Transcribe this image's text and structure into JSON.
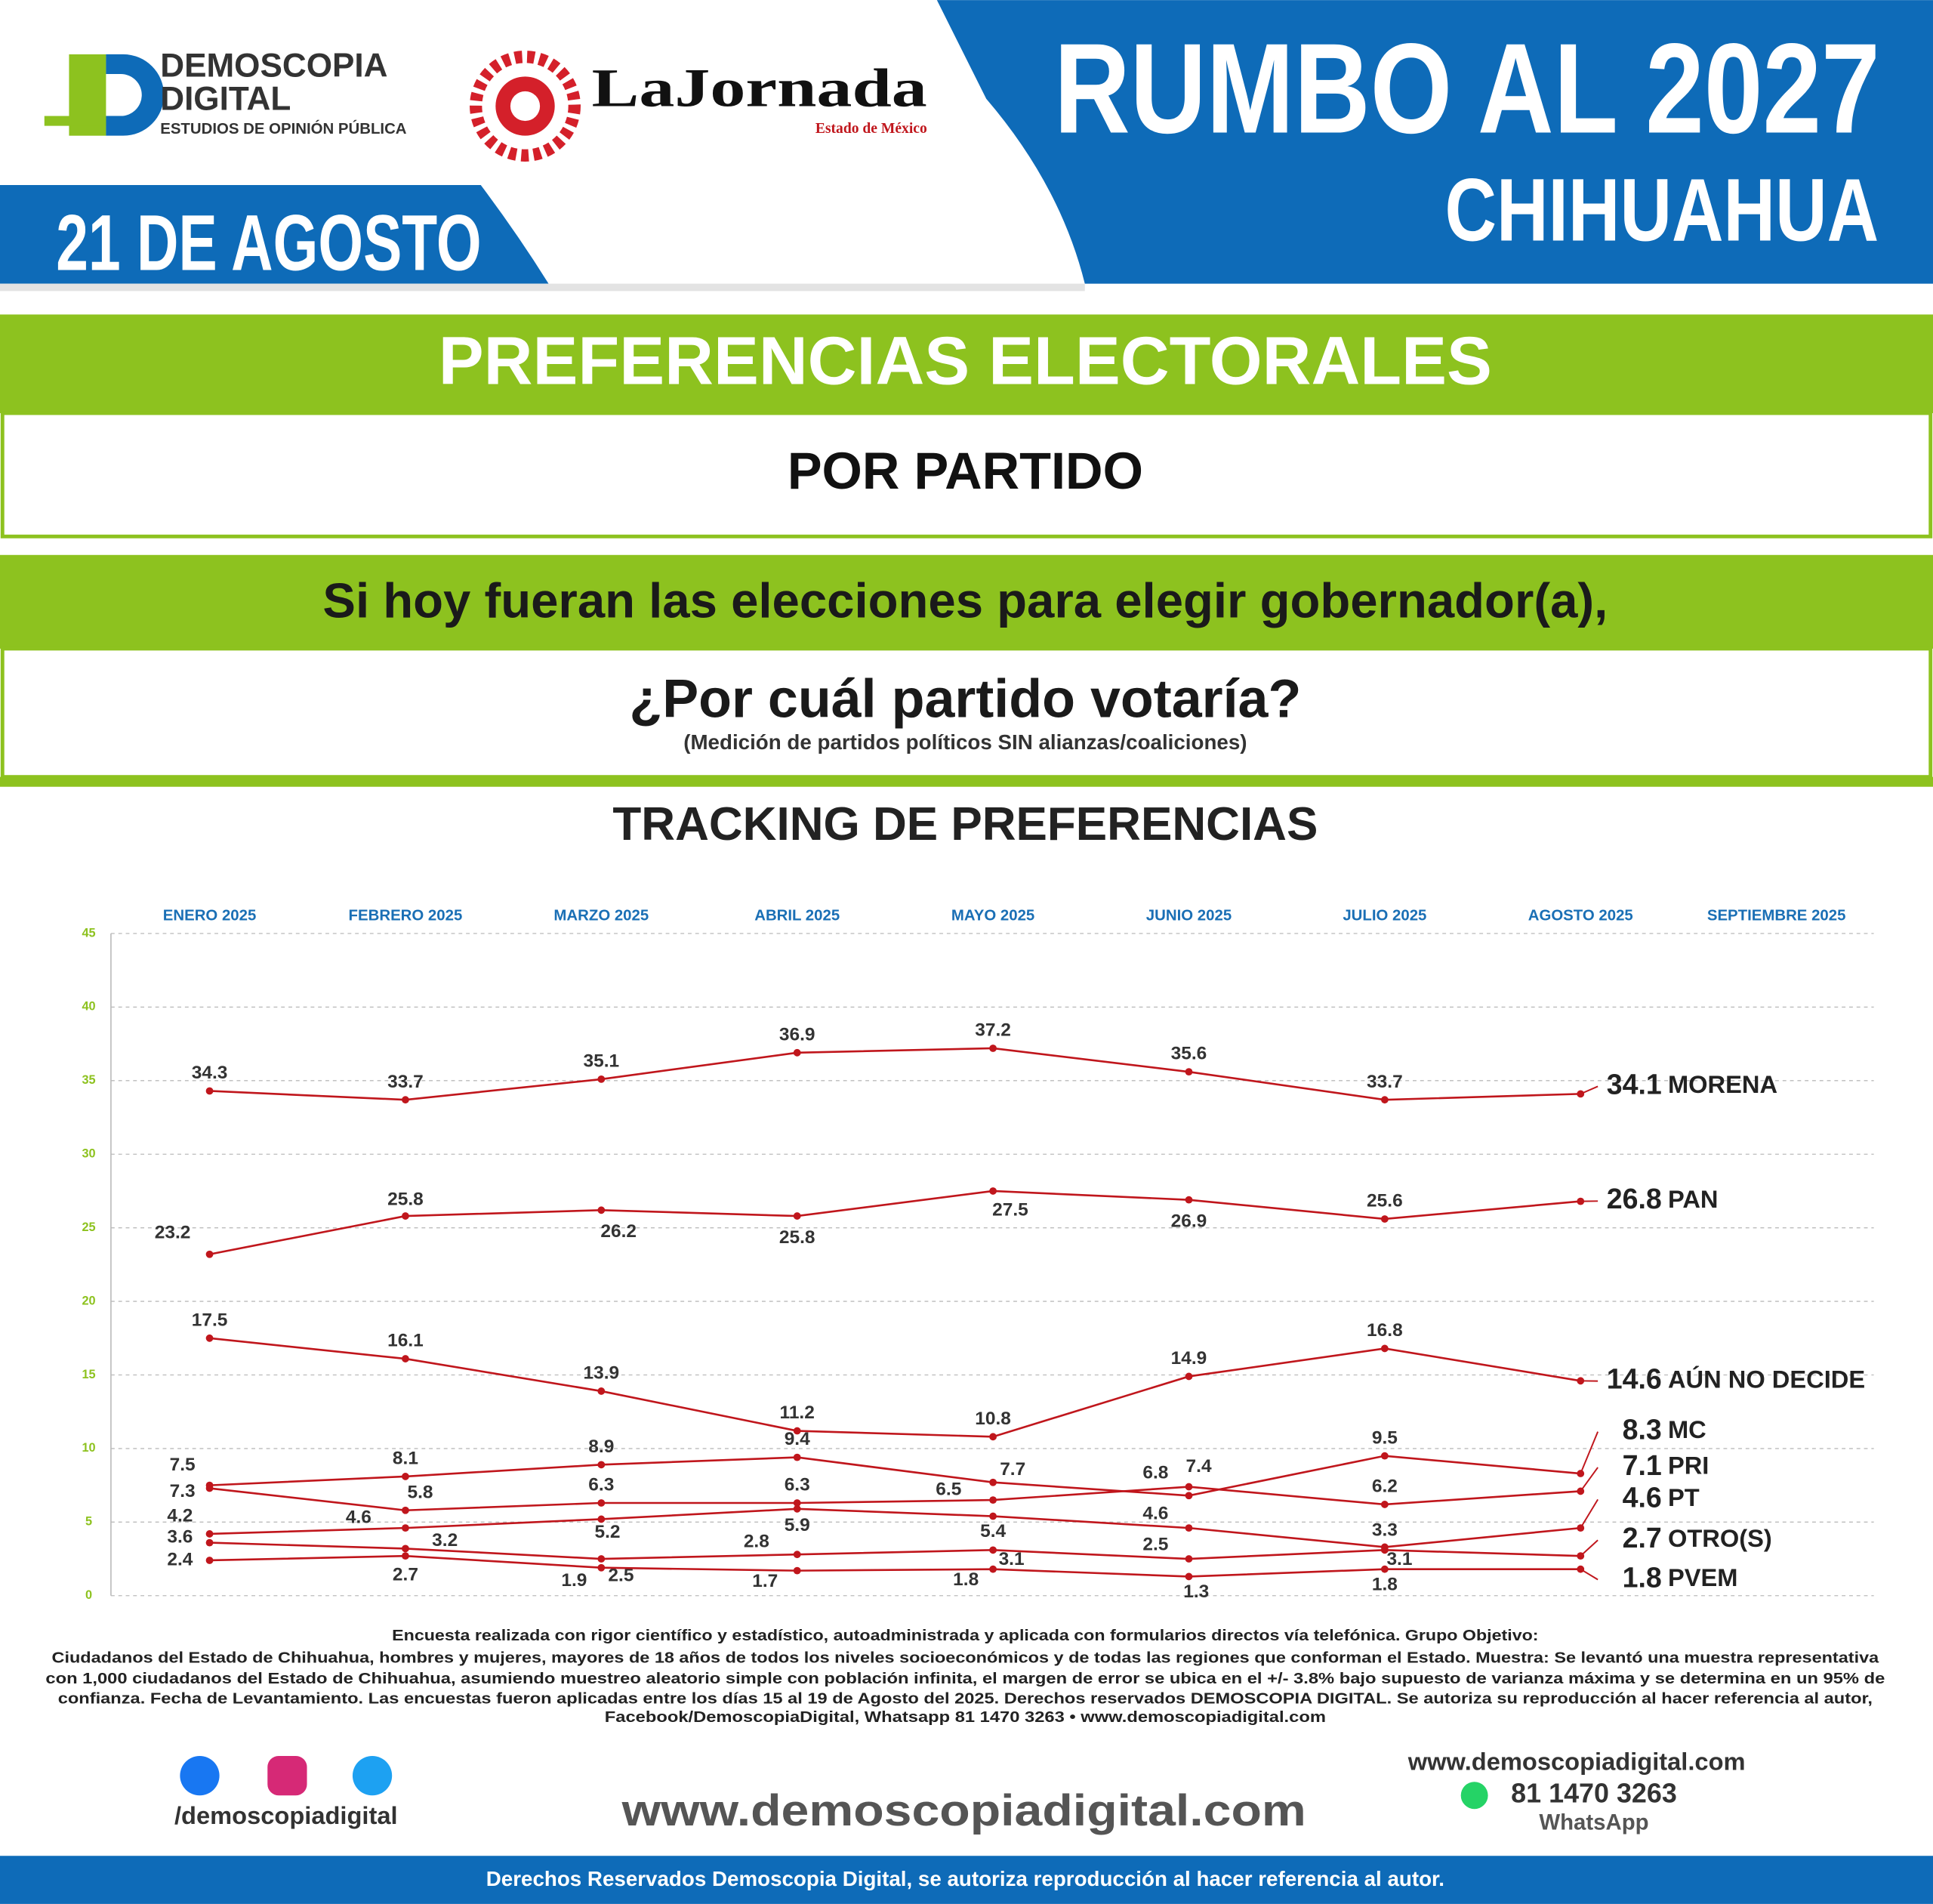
{
  "header": {
    "brand": "DEMOSCOPIA",
    "brand2": "DIGITAL",
    "brand_tagline": "ESTUDIOS DE OPINIÓN PÚBLICA",
    "partner": "LaJornada",
    "partner_edition": "Estado de México",
    "date": "21 DE AGOSTO",
    "title": "RUMBO AL 2027",
    "state": "CHIHUAHUA"
  },
  "banners": {
    "section": "PREFERENCIAS ELECTORALES",
    "subsection": "POR PARTIDO",
    "question_1": "Si hoy fueran las elecciones para elegir gobernador(a),",
    "question_2": "¿Por cuál partido votaría?",
    "note": "(Medición de partidos políticos SIN alianzas/coaliciones)"
  },
  "chart_data": {
    "type": "line",
    "title": "TRACKING DE PREFERENCIAS",
    "categories": [
      "ENERO 2025",
      "FEBRERO 2025",
      "MARZO 2025",
      "ABRIL 2025",
      "MAYO 2025",
      "JUNIO 2025",
      "JULIO 2025",
      "AGOSTO 2025",
      "SEPTIEMBRE 2025"
    ],
    "ylim": [
      0,
      45
    ],
    "yticks": [
      0,
      5,
      10,
      15,
      20,
      25,
      30,
      35,
      40,
      45
    ],
    "grid": true,
    "series": [
      {
        "name": "MORENA",
        "color": "#c0161c",
        "values": [
          34.3,
          33.7,
          35.1,
          36.9,
          37.2,
          35.6,
          33.7,
          34.1,
          null
        ]
      },
      {
        "name": "PAN",
        "color": "#c0161c",
        "values": [
          23.2,
          25.8,
          26.2,
          25.8,
          27.5,
          26.9,
          25.6,
          26.8,
          null
        ]
      },
      {
        "name": "AÚN NO DECIDE",
        "color": "#c0161c",
        "values": [
          17.5,
          16.1,
          13.9,
          11.2,
          10.8,
          14.9,
          16.8,
          14.6,
          null
        ]
      },
      {
        "name": "MC",
        "color": "#c0161c",
        "values": [
          7.5,
          8.1,
          8.9,
          9.4,
          7.7,
          6.8,
          9.5,
          8.3,
          null
        ]
      },
      {
        "name": "PRI",
        "color": "#c0161c",
        "values": [
          7.3,
          5.8,
          6.3,
          6.3,
          6.5,
          7.4,
          6.2,
          7.1,
          null
        ]
      },
      {
        "name": "PT",
        "color": "#c0161c",
        "values": [
          4.2,
          4.6,
          5.2,
          5.9,
          5.4,
          4.6,
          3.3,
          4.6,
          null
        ]
      },
      {
        "name": "OTRO(S)",
        "color": "#c0161c",
        "values": [
          3.6,
          3.2,
          2.5,
          2.8,
          3.1,
          2.5,
          3.1,
          2.7,
          null
        ]
      },
      {
        "name": "PVEM",
        "color": "#c0161c",
        "values": [
          2.4,
          2.7,
          1.9,
          1.7,
          1.8,
          1.3,
          1.8,
          1.8,
          null
        ]
      }
    ]
  },
  "footnote": [
    "Encuesta realizada con rigor científico y estadístico, autoadministrada y aplicada con formularios directos vía telefónica. Grupo Objetivo:",
    "Ciudadanos del Estado de Chihuahua, hombres y mujeres, mayores de 18 años de todos los niveles socioeconómicos y de todas las regiones que conforman el Estado. Muestra: Se levantó una muestra representativa",
    "con 1,000 ciudadanos del Estado de Chihuahua, asumiendo muestreo aleatorio simple con población infinita, el margen de error se ubica en el +/- 3.8% bajo supuesto de varianza máxima y se determina en un 95% de",
    "confianza. Fecha de Levantamiento. Las encuestas fueron aplicadas entre los días 15 al 19 de Agosto del 2025. Derechos reservados DEMOSCOPIA DIGITAL. Se autoriza su reproducción al hacer referencia al autor,",
    "Facebook/DemoscopiaDigital, Whatsapp 81 1470 3263 • www.demoscopiadigital.com"
  ],
  "footer": {
    "social_handle": "/demoscopiadigital",
    "website": "www.demoscopiadigital.com",
    "contact_website": "www.demoscopiadigital.com",
    "phone": "81 1470 3263",
    "phone_label": "WhatsApp",
    "rights": "Derechos Reservados Demoscopia Digital, se autoriza reproducción al hacer referencia al autor."
  }
}
